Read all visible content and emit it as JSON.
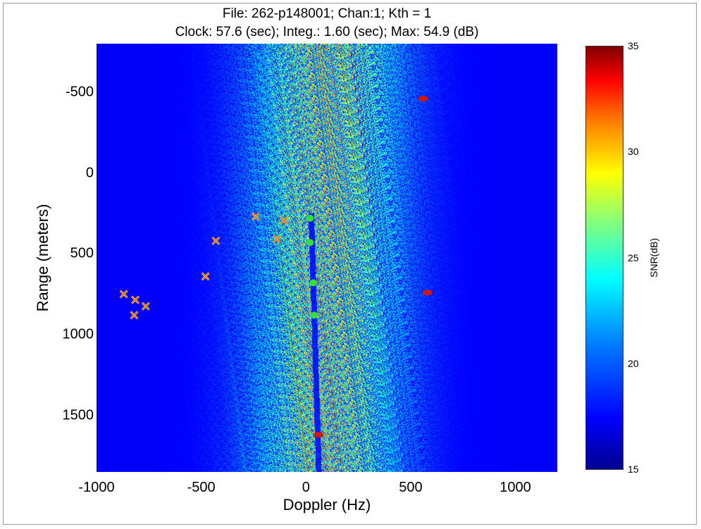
{
  "chart_data": {
    "type": "heatmap",
    "title": "File: 262-p148001; Chan:1; Kth = 1",
    "subtitle": "Clock: 57.6 (sec); Integ.: 1.60 (sec); Max: 54.9 (dB)",
    "xlabel": "Doppler (Hz)",
    "ylabel": "Range (meters)",
    "xlim": [
      -1000,
      1200
    ],
    "ylim": [
      -800,
      1850
    ],
    "y_reversed": true,
    "xticks": [
      "-1000",
      "-500",
      "0",
      "500",
      "1000"
    ],
    "yticks": [
      "-500",
      "0",
      "500",
      "1000",
      "1500"
    ],
    "colorbar": {
      "label": "SNR(dB)",
      "range": [
        15,
        35
      ],
      "ticks": [
        "15",
        "20",
        "25",
        "30",
        "35"
      ],
      "colormap": "jet"
    },
    "markers": {
      "symbol": "x",
      "color": "#ffcc33",
      "points": [
        {
          "x": -870,
          "y": 750
        },
        {
          "x": -815,
          "y": 785
        },
        {
          "x": -765,
          "y": 825
        },
        {
          "x": -820,
          "y": 880
        },
        {
          "x": -480,
          "y": 640
        },
        {
          "x": -430,
          "y": 420
        },
        {
          "x": -240,
          "y": 270
        },
        {
          "x": -140,
          "y": 410
        },
        {
          "x": -105,
          "y": 295
        }
      ]
    },
    "green_points": [
      {
        "x": 20,
        "y": 280
      },
      {
        "x": 20,
        "y": 430
      },
      {
        "x": 35,
        "y": 680
      },
      {
        "x": 40,
        "y": 880
      }
    ],
    "hot_spots": [
      {
        "x": 560,
        "y": -460
      },
      {
        "x": 580,
        "y": 740
      },
      {
        "x": 60,
        "y": 1620
      }
    ],
    "grid": false
  }
}
